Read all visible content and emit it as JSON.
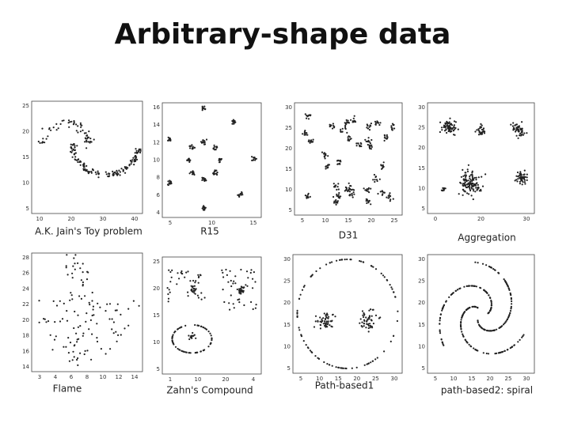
{
  "title": "Arbitrary-shape data",
  "panels": [
    {
      "caption": "A.K. Jain's Toy problem",
      "yticks": [
        "25",
        "20",
        "15",
        "10",
        "5"
      ],
      "xticks": [
        "10",
        "20",
        "30",
        "40"
      ]
    },
    {
      "caption": "R15",
      "yticks": [
        "16",
        "14",
        "12",
        "10",
        "8",
        "6",
        "4"
      ],
      "xticks": [
        "5",
        "10",
        "15"
      ]
    },
    {
      "caption": "D31",
      "yticks": [
        "30",
        "25",
        "20",
        "15",
        "10",
        "5"
      ],
      "xticks": [
        "5",
        "10",
        "15",
        "20",
        "25"
      ]
    },
    {
      "caption": "Aggregation",
      "yticks": [
        "30",
        "25",
        "20",
        "15",
        "10",
        "5"
      ],
      "xticks": [
        "0",
        "20",
        "30"
      ]
    },
    {
      "caption": "Flame",
      "yticks": [
        "28",
        "26",
        "24",
        "22",
        "20",
        "18",
        "16",
        "14"
      ],
      "xticks": [
        "3",
        "4",
        "6",
        "8",
        "10",
        "12",
        "14"
      ]
    },
    {
      "caption": "Zahn's Compound",
      "yticks": [
        "25",
        "20",
        "15",
        "10",
        "5"
      ],
      "xticks": [
        "1",
        "10",
        "20",
        "4"
      ]
    },
    {
      "caption": "Path-based1",
      "yticks": [
        "30",
        "25",
        "20",
        "15",
        "10",
        "5"
      ],
      "xticks": [
        "5",
        "10",
        "15",
        "20",
        "25",
        "30"
      ]
    },
    {
      "caption": "path-based2: spiral",
      "yticks": [
        "30",
        "25",
        "20",
        "15",
        "10",
        "5"
      ],
      "xticks": [
        "5",
        "10",
        "15",
        "20",
        "25",
        "30"
      ]
    }
  ]
}
